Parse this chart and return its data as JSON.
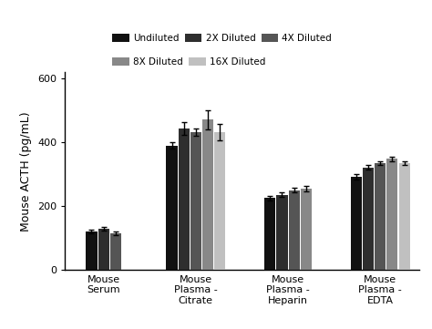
{
  "categories": [
    "Mouse\nSerum",
    "Mouse\nPlasma -\nCitrate",
    "Mouse\nPlasma -\nHeparin",
    "Mouse\nPlasma -\nEDTA"
  ],
  "series_labels": [
    "Undiluted",
    "2X Diluted",
    "4X Diluted",
    "8X Diluted",
    "16X Diluted"
  ],
  "series_colors": [
    "#111111",
    "#2e2e2e",
    "#555555",
    "#888888",
    "#c0c0c0"
  ],
  "group_series": [
    [
      0,
      1,
      2
    ],
    [
      0,
      1,
      2,
      3,
      4
    ],
    [
      0,
      1,
      2,
      3
    ],
    [
      0,
      1,
      2,
      3,
      4
    ]
  ],
  "group_values": [
    [
      120,
      130,
      115,
      0,
      0
    ],
    [
      390,
      445,
      432,
      472,
      432
    ],
    [
      225,
      235,
      250,
      255,
      0
    ],
    [
      292,
      322,
      335,
      348,
      335
    ]
  ],
  "group_errors": [
    [
      5,
      6,
      5,
      0,
      0
    ],
    [
      10,
      20,
      12,
      30,
      25
    ],
    [
      6,
      7,
      8,
      8,
      0
    ],
    [
      8,
      8,
      7,
      7,
      6
    ]
  ],
  "ylabel": "Mouse ACTH (pg/mL)",
  "ylim": [
    0,
    620
  ],
  "yticks": [
    0,
    200,
    400,
    600
  ],
  "bar_width": 0.13,
  "background_color": "#ffffff",
  "legend_fontsize": 7.5,
  "axis_fontsize": 9,
  "tick_fontsize": 8
}
